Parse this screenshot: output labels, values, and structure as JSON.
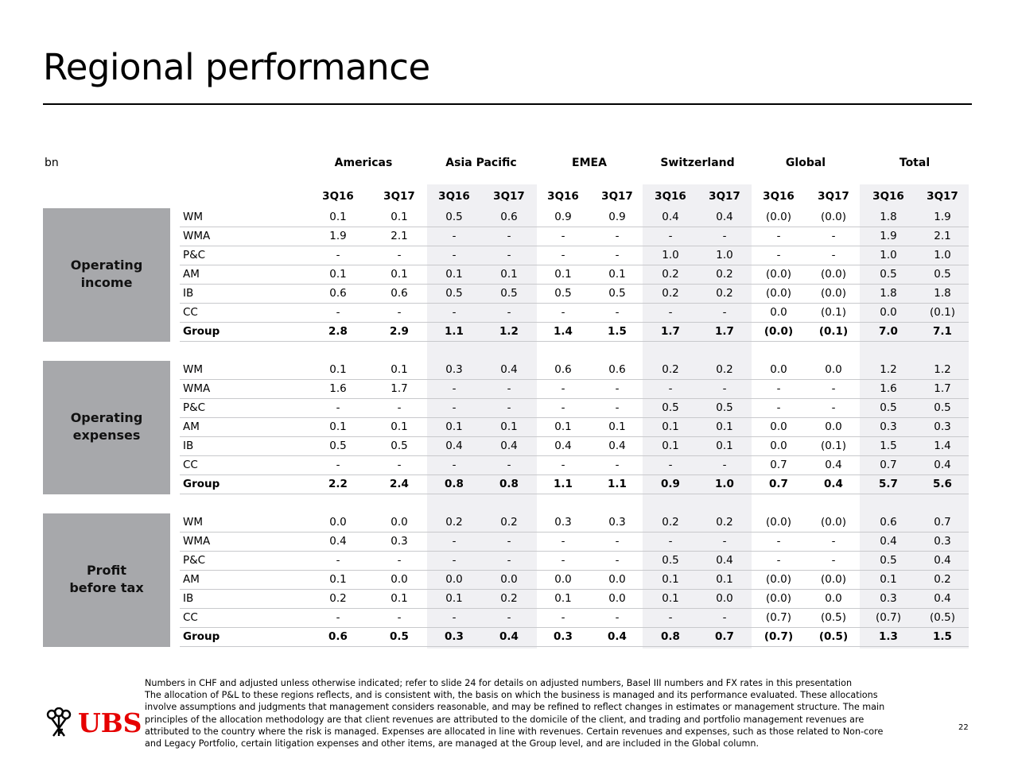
{
  "title": "Regional performance",
  "unit": "bn",
  "regions": [
    "Americas",
    "Asia Pacific",
    "EMEA",
    "Switzerland",
    "Global",
    "Total"
  ],
  "quarters": [
    "3Q16",
    "3Q17",
    "3Q16",
    "3Q17",
    "3Q16",
    "3Q17",
    "3Q16",
    "3Q17",
    "3Q16",
    "3Q17",
    "3Q16",
    "3Q17"
  ],
  "sections": [
    {
      "label_lines": [
        "Operating",
        "income"
      ],
      "rows": [
        {
          "segment": "WM",
          "values": [
            "0.1",
            "0.1",
            "0.5",
            "0.6",
            "0.9",
            "0.9",
            "0.4",
            "0.4",
            "(0.0)",
            "(0.0)",
            "1.8",
            "1.9"
          ]
        },
        {
          "segment": "WMA",
          "values": [
            "1.9",
            "2.1",
            "-",
            "-",
            "-",
            "-",
            "-",
            "-",
            "-",
            "-",
            "1.9",
            "2.1"
          ]
        },
        {
          "segment": "P&C",
          "values": [
            "-",
            "-",
            "-",
            "-",
            "-",
            "-",
            "1.0",
            "1.0",
            "-",
            "-",
            "1.0",
            "1.0"
          ]
        },
        {
          "segment": "AM",
          "values": [
            "0.1",
            "0.1",
            "0.1",
            "0.1",
            "0.1",
            "0.1",
            "0.2",
            "0.2",
            "(0.0)",
            "(0.0)",
            "0.5",
            "0.5"
          ]
        },
        {
          "segment": "IB",
          "values": [
            "0.6",
            "0.6",
            "0.5",
            "0.5",
            "0.5",
            "0.5",
            "0.2",
            "0.2",
            "(0.0)",
            "(0.0)",
            "1.8",
            "1.8"
          ]
        },
        {
          "segment": "CC",
          "values": [
            "-",
            "-",
            "-",
            "-",
            "-",
            "-",
            "-",
            "-",
            "0.0",
            "(0.1)",
            "0.0",
            "(0.1)"
          ]
        },
        {
          "segment": "Group",
          "values": [
            "2.8",
            "2.9",
            "1.1",
            "1.2",
            "1.4",
            "1.5",
            "1.7",
            "1.7",
            "(0.0)",
            "(0.1)",
            "7.0",
            "7.1"
          ]
        }
      ]
    },
    {
      "label_lines": [
        "Operating",
        "expenses"
      ],
      "rows": [
        {
          "segment": "WM",
          "values": [
            "0.1",
            "0.1",
            "0.3",
            "0.4",
            "0.6",
            "0.6",
            "0.2",
            "0.2",
            "0.0",
            "0.0",
            "1.2",
            "1.2"
          ]
        },
        {
          "segment": "WMA",
          "values": [
            "1.6",
            "1.7",
            "-",
            "-",
            "-",
            "-",
            "-",
            "-",
            "-",
            "-",
            "1.6",
            "1.7"
          ]
        },
        {
          "segment": "P&C",
          "values": [
            "-",
            "-",
            "-",
            "-",
            "-",
            "-",
            "0.5",
            "0.5",
            "-",
            "-",
            "0.5",
            "0.5"
          ]
        },
        {
          "segment": "AM",
          "values": [
            "0.1",
            "0.1",
            "0.1",
            "0.1",
            "0.1",
            "0.1",
            "0.1",
            "0.1",
            "0.0",
            "0.0",
            "0.3",
            "0.3"
          ]
        },
        {
          "segment": "IB",
          "values": [
            "0.5",
            "0.5",
            "0.4",
            "0.4",
            "0.4",
            "0.4",
            "0.1",
            "0.1",
            "0.0",
            "(0.1)",
            "1.5",
            "1.4"
          ]
        },
        {
          "segment": "CC",
          "values": [
            "-",
            "-",
            "-",
            "-",
            "-",
            "-",
            "-",
            "-",
            "0.7",
            "0.4",
            "0.7",
            "0.4"
          ]
        },
        {
          "segment": "Group",
          "values": [
            "2.2",
            "2.4",
            "0.8",
            "0.8",
            "1.1",
            "1.1",
            "0.9",
            "1.0",
            "0.7",
            "0.4",
            "5.7",
            "5.6"
          ]
        }
      ]
    },
    {
      "label_lines": [
        "Profit",
        "before tax"
      ],
      "rows": [
        {
          "segment": "WM",
          "values": [
            "0.0",
            "0.0",
            "0.2",
            "0.2",
            "0.3",
            "0.3",
            "0.2",
            "0.2",
            "(0.0)",
            "(0.0)",
            "0.6",
            "0.7"
          ]
        },
        {
          "segment": "WMA",
          "values": [
            "0.4",
            "0.3",
            "-",
            "-",
            "-",
            "-",
            "-",
            "-",
            "-",
            "-",
            "0.4",
            "0.3"
          ]
        },
        {
          "segment": "P&C",
          "values": [
            "-",
            "-",
            "-",
            "-",
            "-",
            "-",
            "0.5",
            "0.4",
            "-",
            "-",
            "0.5",
            "0.4"
          ]
        },
        {
          "segment": "AM",
          "values": [
            "0.1",
            "0.0",
            "0.0",
            "0.0",
            "0.0",
            "0.0",
            "0.1",
            "0.1",
            "(0.0)",
            "(0.0)",
            "0.1",
            "0.2"
          ]
        },
        {
          "segment": "IB",
          "values": [
            "0.2",
            "0.1",
            "0.1",
            "0.2",
            "0.1",
            "0.0",
            "0.1",
            "0.0",
            "(0.0)",
            "0.0",
            "0.3",
            "0.4"
          ]
        },
        {
          "segment": "CC",
          "values": [
            "-",
            "-",
            "-",
            "-",
            "-",
            "-",
            "-",
            "-",
            "(0.7)",
            "(0.5)",
            "(0.7)",
            "(0.5)"
          ]
        },
        {
          "segment": "Group",
          "values": [
            "0.6",
            "0.5",
            "0.3",
            "0.4",
            "0.3",
            "0.4",
            "0.8",
            "0.7",
            "(0.7)",
            "(0.5)",
            "1.3",
            "1.5"
          ]
        }
      ]
    }
  ],
  "footnote_lines": [
    "Numbers in CHF and adjusted unless otherwise indicated; refer to slide 24 for details on adjusted numbers, Basel III numbers and FX rates in this presentation",
    "The allocation of P&L to these regions reflects, and is consistent with, the basis on which the business is managed and its performance evaluated. These allocations",
    "involve assumptions and judgments that management considers reasonable, and may be refined to reflect changes in estimates or management structure. The main",
    "principles of the allocation methodology are that client revenues are attributed to the domicile of the client, and trading and portfolio management revenues are",
    "attributed to the country where the risk is managed. Expenses are allocated in line with revenues. Certain revenues and expenses, such as those related to Non-core",
    "and Legacy Portfolio, certain litigation expenses and other items, are managed at the Group level, and are included in the Global column."
  ],
  "logo": {
    "text": "UBS",
    "icon": "three-keys-icon",
    "color": "#e60000"
  },
  "page_number": "22",
  "colors": {
    "section_block": "#a7a8ab",
    "column_stripe": "#f0f0f3",
    "row_rule": "#c8c9cc"
  }
}
